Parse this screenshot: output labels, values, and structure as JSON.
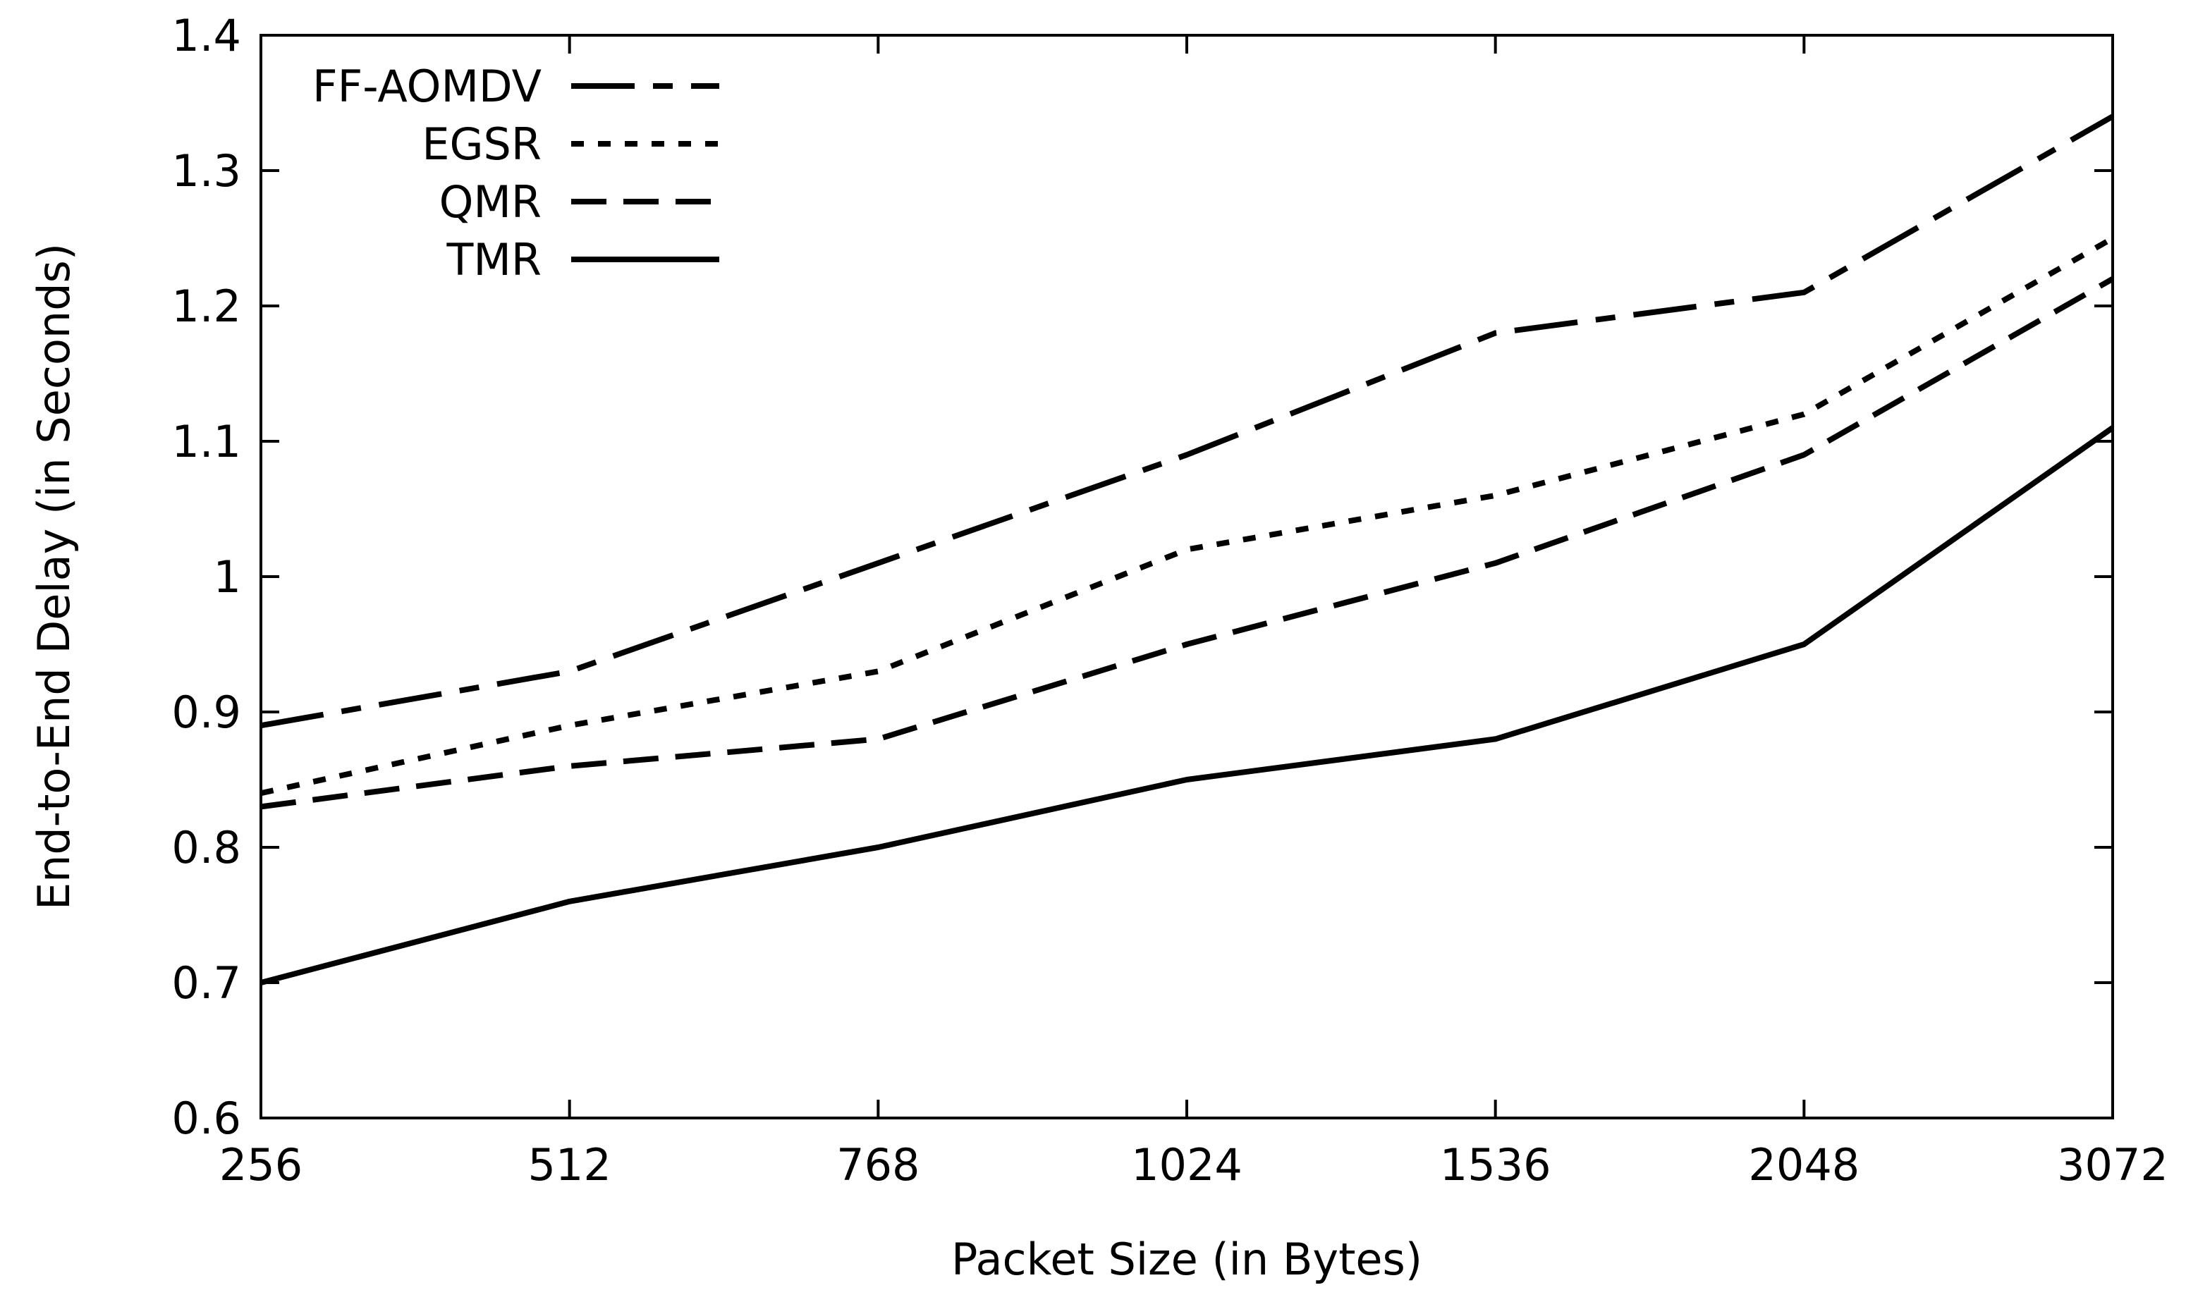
{
  "chart_data": {
    "type": "line",
    "title": "",
    "xlabel": "Packet Size (in Bytes)",
    "ylabel": "End-to-End Delay (in Seconds)",
    "categories": [
      "256",
      "512",
      "768",
      "1024",
      "1536",
      "2048",
      "3072"
    ],
    "ylim": [
      0.6,
      1.4
    ],
    "yticks": [
      "0.6",
      "0.7",
      "0.8",
      "0.9",
      "1",
      "1.1",
      "1.2",
      "1.3",
      "1.4"
    ],
    "grid": false,
    "legend_position": "top-left",
    "series": [
      {
        "name": "FF-AOMDV",
        "style": "long-dash-dot",
        "color": "#000000",
        "values": [
          0.89,
          0.93,
          1.01,
          1.09,
          1.18,
          1.21,
          1.34
        ]
      },
      {
        "name": "EGSR",
        "style": "dotted",
        "color": "#000000",
        "values": [
          0.84,
          0.89,
          0.93,
          1.02,
          1.06,
          1.12,
          1.25
        ]
      },
      {
        "name": "QMR",
        "style": "dashed",
        "color": "#000000",
        "values": [
          0.83,
          0.86,
          0.88,
          0.95,
          1.01,
          1.09,
          1.22
        ]
      },
      {
        "name": "TMR",
        "style": "solid",
        "color": "#000000",
        "values": [
          0.7,
          0.76,
          0.8,
          0.85,
          0.88,
          0.95,
          1.11
        ]
      }
    ]
  }
}
